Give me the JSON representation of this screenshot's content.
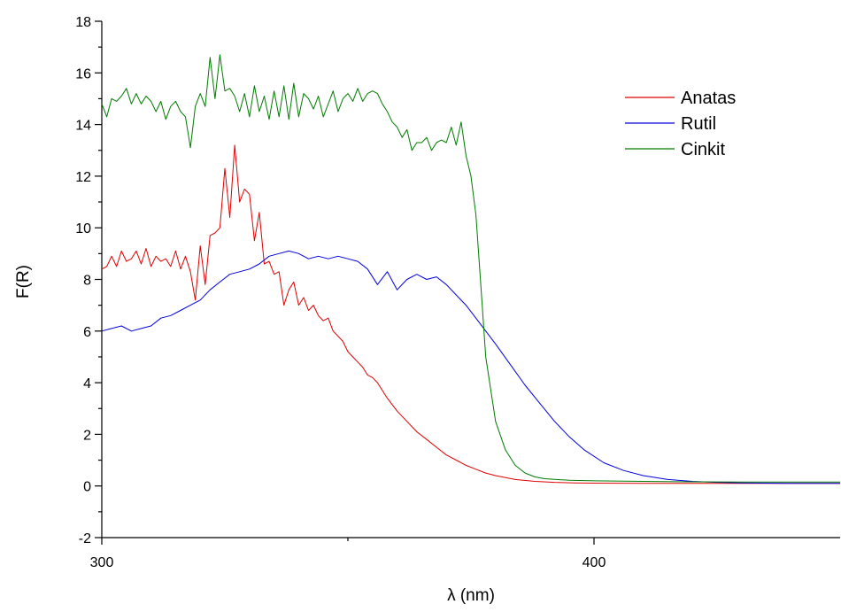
{
  "chart_data": {
    "type": "line",
    "xlabel": "λ (nm)",
    "ylabel": "F(R)",
    "xlim": [
      300,
      450
    ],
    "ylim": [
      -2,
      18
    ],
    "x_ticks": [
      300,
      400
    ],
    "y_ticks": [
      -2,
      0,
      2,
      4,
      6,
      8,
      10,
      12,
      14,
      16,
      18
    ],
    "grid": false,
    "legend_position": "top-right",
    "series": [
      {
        "name": "Anatas",
        "color": "#e00000",
        "x": [
          300,
          301,
          302,
          303,
          304,
          305,
          306,
          307,
          308,
          309,
          310,
          311,
          312,
          313,
          314,
          315,
          316,
          317,
          318,
          319,
          320,
          321,
          322,
          323,
          324,
          325,
          326,
          327,
          328,
          329,
          330,
          331,
          332,
          333,
          334,
          335,
          336,
          337,
          338,
          339,
          340,
          341,
          342,
          343,
          344,
          345,
          346,
          347,
          348,
          349,
          350,
          351,
          352,
          353,
          354,
          355,
          356,
          358,
          360,
          362,
          364,
          366,
          368,
          370,
          372,
          374,
          376,
          378,
          380,
          384,
          388,
          392,
          396,
          400,
          410,
          420,
          430,
          440,
          450
        ],
        "y": [
          8.4,
          8.5,
          8.9,
          8.5,
          9.1,
          8.7,
          8.8,
          9.1,
          8.6,
          9.2,
          8.5,
          8.9,
          8.7,
          8.8,
          8.5,
          9.1,
          8.4,
          8.9,
          8.3,
          7.2,
          9.3,
          7.8,
          9.7,
          9.8,
          10.0,
          12.3,
          10.4,
          13.2,
          11.0,
          11.5,
          11.3,
          9.5,
          10.6,
          8.6,
          8.7,
          8.2,
          8.3,
          7.0,
          7.6,
          7.9,
          7.0,
          7.3,
          6.8,
          7.0,
          6.6,
          6.4,
          6.5,
          6.0,
          5.8,
          5.6,
          5.2,
          5.0,
          4.8,
          4.6,
          4.3,
          4.2,
          4.0,
          3.4,
          2.9,
          2.5,
          2.1,
          1.8,
          1.5,
          1.2,
          1.0,
          0.8,
          0.65,
          0.5,
          0.4,
          0.25,
          0.18,
          0.14,
          0.12,
          0.11,
          0.1,
          0.1,
          0.1,
          0.1,
          0.1
        ]
      },
      {
        "name": "Rutil",
        "color": "#0000dd",
        "x": [
          300,
          302,
          304,
          306,
          308,
          310,
          312,
          314,
          316,
          318,
          320,
          322,
          324,
          326,
          328,
          330,
          332,
          334,
          336,
          338,
          340,
          342,
          344,
          346,
          348,
          350,
          352,
          354,
          356,
          358,
          360,
          362,
          364,
          366,
          368,
          370,
          372,
          374,
          376,
          378,
          380,
          383,
          386,
          389,
          392,
          395,
          398,
          402,
          406,
          410,
          415,
          420,
          425,
          430,
          440,
          450
        ],
        "y": [
          6.0,
          6.1,
          6.2,
          6.0,
          6.1,
          6.2,
          6.5,
          6.6,
          6.8,
          7.0,
          7.2,
          7.6,
          7.9,
          8.2,
          8.3,
          8.4,
          8.6,
          8.9,
          9.0,
          9.1,
          9.0,
          8.8,
          8.9,
          8.8,
          8.9,
          8.8,
          8.7,
          8.4,
          7.8,
          8.3,
          7.6,
          8.0,
          8.2,
          8.0,
          8.1,
          7.8,
          7.4,
          7.0,
          6.5,
          6.0,
          5.5,
          4.7,
          3.9,
          3.2,
          2.5,
          1.9,
          1.4,
          0.9,
          0.6,
          0.4,
          0.25,
          0.18,
          0.14,
          0.12,
          0.1,
          0.1
        ]
      },
      {
        "name": "Cinkit",
        "color": "#007a00",
        "x": [
          300,
          301,
          302,
          303,
          304,
          305,
          306,
          307,
          308,
          309,
          310,
          311,
          312,
          313,
          314,
          315,
          316,
          317,
          318,
          319,
          320,
          321,
          322,
          323,
          324,
          325,
          326,
          327,
          328,
          329,
          330,
          331,
          332,
          333,
          334,
          335,
          336,
          337,
          338,
          339,
          340,
          341,
          342,
          343,
          344,
          345,
          346,
          347,
          348,
          349,
          350,
          351,
          352,
          353,
          354,
          355,
          356,
          357,
          358,
          359,
          360,
          361,
          362,
          363,
          364,
          365,
          366,
          367,
          368,
          369,
          370,
          371,
          372,
          373,
          374,
          375,
          376,
          377,
          378,
          380,
          382,
          384,
          386,
          388,
          390,
          395,
          400,
          410,
          420,
          430,
          440,
          450
        ],
        "y": [
          14.8,
          14.3,
          15.0,
          14.9,
          15.1,
          15.4,
          14.8,
          15.2,
          14.8,
          15.1,
          14.9,
          14.5,
          14.9,
          14.2,
          14.7,
          14.9,
          14.5,
          14.3,
          13.1,
          14.7,
          15.2,
          14.7,
          16.6,
          15.0,
          16.7,
          15.3,
          15.4,
          15.1,
          14.5,
          15.2,
          14.3,
          15.5,
          14.5,
          15.1,
          14.2,
          15.3,
          14.3,
          15.5,
          14.2,
          15.6,
          14.3,
          15.2,
          15.0,
          14.6,
          15.1,
          14.3,
          14.8,
          15.3,
          14.5,
          15.0,
          15.2,
          14.9,
          15.4,
          14.9,
          15.2,
          15.3,
          15.2,
          14.8,
          14.5,
          14.1,
          13.9,
          13.5,
          13.8,
          13.0,
          13.3,
          13.3,
          13.5,
          13.0,
          13.3,
          13.4,
          13.3,
          13.9,
          13.2,
          14.1,
          12.8,
          12.0,
          10.5,
          7.8,
          5.0,
          2.5,
          1.4,
          0.8,
          0.5,
          0.35,
          0.28,
          0.22,
          0.2,
          0.18,
          0.16,
          0.15,
          0.15,
          0.15
        ]
      }
    ]
  }
}
